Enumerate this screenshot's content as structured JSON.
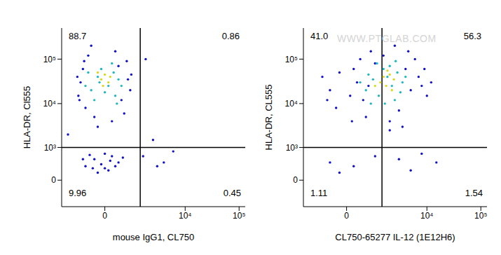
{
  "chart_data": [
    {
      "type": "scatter",
      "log": true,
      "x_label": "mouse IgG1, CL750",
      "y_label": "HLA-DR, Cl555",
      "xlim": [
        -2000,
        130000
      ],
      "xticks": [
        0,
        {
          "value": 10000,
          "label": "10⁴"
        },
        {
          "value": 100000,
          "label": "10⁵"
        }
      ],
      "ylim": [
        -700,
        500000
      ],
      "yticks": [
        0,
        {
          "value": 1000,
          "label": "10³"
        },
        {
          "value": 10000,
          "label": "10⁴"
        },
        {
          "value": 100000,
          "label": "10⁵"
        }
      ],
      "gates": {
        "x": 1400,
        "y": 1000
      },
      "quadrants": {
        "upper_left": "88.7",
        "upper_right": "0.86",
        "lower_left": "9.96",
        "lower_right": "0.45"
      },
      "series": [
        {
          "color": "#1010c8",
          "points": [
            [
              -900,
              15000
            ],
            [
              -700,
              60000
            ],
            [
              -600,
              8000
            ],
            [
              -500,
              120000
            ],
            [
              -800,
              30000
            ],
            [
              700,
              90000
            ],
            [
              850,
              20000
            ],
            [
              600,
              6000
            ],
            [
              -300,
              5000
            ],
            [
              300,
              150000
            ],
            [
              900,
              45000
            ],
            [
              -950,
              40000
            ],
            [
              500,
              12000
            ],
            [
              -400,
              200000
            ],
            [
              200,
              4000
            ],
            [
              -650,
              90000
            ],
            [
              750,
              35000
            ],
            [
              -200,
              3000
            ],
            [
              400,
              70000
            ],
            [
              -850,
              12000
            ],
            [
              -600,
              300
            ],
            [
              -300,
              500
            ],
            [
              0,
              250
            ],
            [
              200,
              600
            ],
            [
              -100,
              350
            ],
            [
              400,
              400
            ],
            [
              -450,
              650
            ],
            [
              100,
              200
            ],
            [
              -200,
              150
            ],
            [
              300,
              300
            ],
            [
              -700,
              500
            ],
            [
              550,
              550
            ],
            [
              0,
              700
            ],
            [
              -350,
              250
            ],
            [
              150,
              450
            ],
            [
              2500,
              1500
            ],
            [
              4000,
              400
            ],
            [
              1800,
              100000
            ],
            [
              6000,
              800
            ],
            [
              3000,
              300
            ],
            [
              -1500,
              2000
            ],
            [
              1600,
              600
            ]
          ]
        },
        {
          "color": "#20b8c0",
          "points": [
            [
              -400,
              20000
            ],
            [
              -200,
              40000
            ],
            [
              100,
              25000
            ],
            [
              300,
              15000
            ],
            [
              -500,
              50000
            ],
            [
              400,
              35000
            ],
            [
              -100,
              60000
            ],
            [
              200,
              80000
            ],
            [
              -300,
              12000
            ],
            [
              500,
              25000
            ],
            [
              0,
              18000
            ],
            [
              -600,
              25000
            ],
            [
              250,
              50000
            ],
            [
              -150,
              30000
            ],
            [
              350,
              10000
            ]
          ]
        },
        {
          "color": "#d8d820",
          "points": [
            [
              -100,
              35000
            ],
            [
              0,
              45000
            ],
            [
              100,
              30000
            ],
            [
              -50,
              25000
            ],
            [
              150,
              40000
            ],
            [
              -200,
              50000
            ]
          ]
        }
      ]
    },
    {
      "type": "scatter",
      "log": true,
      "x_label": "CL750-65277 IL-12 (1E12H6)",
      "y_label": "HLA-DR, CL555",
      "xlim": [
        -2000,
        130000
      ],
      "xticks": [
        0,
        {
          "value": 10000,
          "label": "10⁴"
        },
        {
          "value": 100000,
          "label": "10⁵"
        }
      ],
      "ylim": [
        -700,
        500000
      ],
      "yticks": [
        0,
        {
          "value": 1000,
          "label": "10³"
        },
        {
          "value": 10000,
          "label": "10⁴"
        },
        {
          "value": 100000,
          "label": "10⁵"
        }
      ],
      "gates": {
        "x": 1400,
        "y": 1000
      },
      "quadrants": {
        "upper_left": "41.0",
        "upper_right": "56.3",
        "lower_left": "1.11",
        "lower_right": "1.54"
      },
      "annotations": [
        "WWW.PTGLAB.COM"
      ],
      "series": [
        {
          "color": "#1010c8",
          "points": [
            [
              -500,
              20000
            ],
            [
              -800,
              40000
            ],
            [
              -300,
              8000
            ],
            [
              200,
              60000
            ],
            [
              100,
              15000
            ],
            [
              400,
              100000
            ],
            [
              600,
              5000
            ],
            [
              800,
              150000
            ],
            [
              300,
              30000
            ],
            [
              500,
              12000
            ],
            [
              1000,
              80000
            ],
            [
              2500,
              200000
            ],
            [
              3000,
              7000
            ],
            [
              4000,
              60000
            ],
            [
              5000,
              20000
            ],
            [
              7000,
              40000
            ],
            [
              10000,
              15000
            ],
            [
              6000,
              100000
            ],
            [
              8000,
              25000
            ],
            [
              2000,
              4000
            ],
            [
              3500,
              3000
            ],
            [
              12000,
              30000
            ],
            [
              -200,
              50000
            ],
            [
              700,
              25000
            ],
            [
              1500,
              120000
            ],
            [
              9000,
              60000
            ],
            [
              4500,
              150000
            ],
            [
              -600,
              12000
            ],
            [
              150,
              4000
            ],
            [
              2000,
              2500
            ],
            [
              -500,
              400
            ],
            [
              200,
              300
            ],
            [
              1000,
              600
            ],
            [
              3000,
              500
            ],
            [
              8000,
              700
            ],
            [
              5000,
              200
            ],
            [
              15000,
              400
            ],
            [
              -200,
              150
            ]
          ]
        },
        {
          "color": "#20b8c0",
          "points": [
            [
              600,
              20000
            ],
            [
              900,
              35000
            ],
            [
              1200,
              15000
            ],
            [
              1800,
              40000
            ],
            [
              2200,
              25000
            ],
            [
              2800,
              50000
            ],
            [
              1500,
              60000
            ],
            [
              700,
              45000
            ],
            [
              3500,
              30000
            ],
            [
              2500,
              12000
            ],
            [
              1100,
              80000
            ],
            [
              2000,
              70000
            ],
            [
              400,
              30000
            ],
            [
              3200,
              18000
            ],
            [
              1600,
              10000
            ],
            [
              4000,
              40000
            ],
            [
              800,
              10000
            ],
            [
              2600,
              90000
            ]
          ]
        },
        {
          "color": "#d8d820",
          "points": [
            [
              1300,
              30000
            ],
            [
              1700,
              25000
            ],
            [
              2000,
              45000
            ],
            [
              1500,
              40000
            ],
            [
              2400,
              35000
            ],
            [
              1000,
              25000
            ],
            [
              1800,
              55000
            ],
            [
              2200,
              20000
            ]
          ]
        }
      ]
    }
  ]
}
